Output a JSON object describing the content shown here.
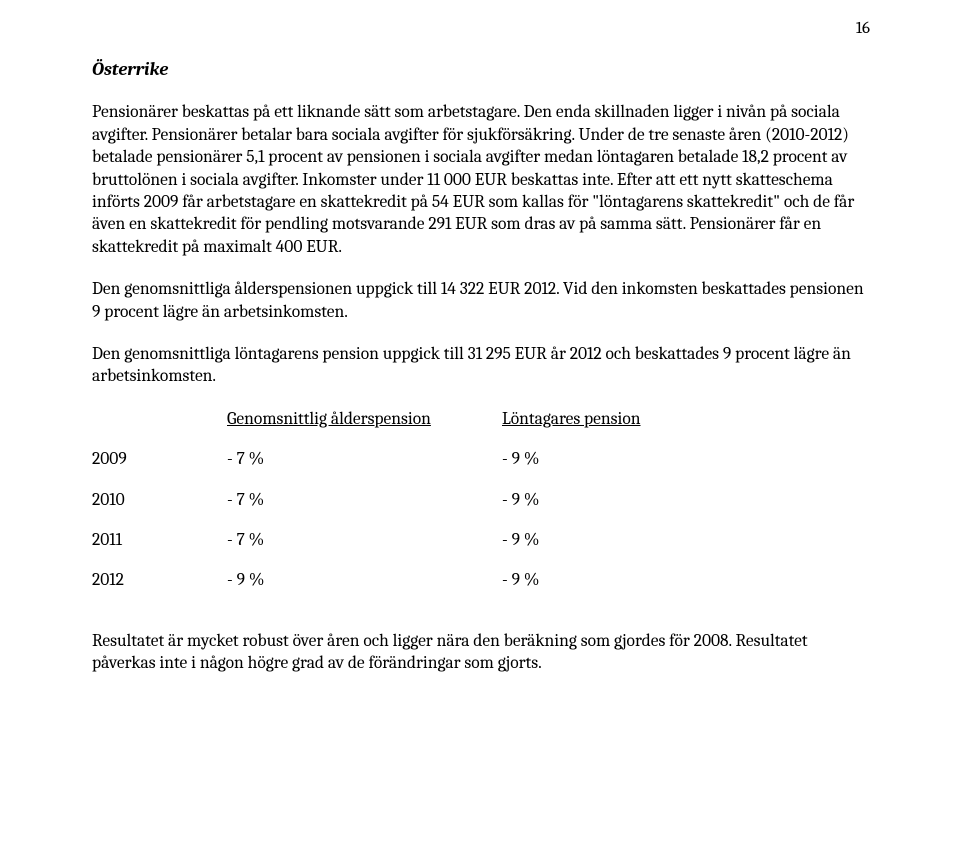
{
  "page_number": "16",
  "section_title": "Österrike",
  "paragraphs": {
    "p1": "Pensionärer beskattas på ett liknande sätt som arbetstagare. Den enda skillnaden ligger i nivån på sociala avgifter. Pensionärer betalar bara sociala avgifter för sjukförsäkring. Under de tre senaste åren (2010-2012) betalade pensionärer 5,1 procent av pensionen i sociala avgifter medan löntagaren betalade 18,2 procent av bruttolönen i sociala avgifter. Inkomster under 11 000 EUR beskattas inte. Efter att ett nytt skatteschema införts 2009 får arbetstagare en skattekredit på 54 EUR som kallas för \"löntagarens skattekredit\" och de får även en skattekredit för pendling motsvarande 291 EUR som dras av på samma sätt. Pensionärer får en skattekredit på maximalt 400 EUR.",
    "p2": "Den genomsnittliga ålderspensionen uppgick till 14 322 EUR 2012. Vid den inkomsten beskattades pensionen 9 procent lägre än arbetsinkomsten.",
    "p3": "Den genomsnittliga löntagarens pension uppgick till 31 295 EUR år 2012 och beskattades 9 procent lägre än arbetsinkomsten.",
    "p4": "Resultatet är mycket robust över åren och ligger nära den beräkning som gjordes för 2008. Resultatet påverkas inte i någon högre grad av de förändringar som gjorts."
  },
  "table": {
    "headers": {
      "col2": "Genomsnittlig ålderspension",
      "col3": "Löntagares pension"
    },
    "rows": [
      {
        "year": "2009",
        "avg": "- 7 %",
        "emp": "- 9 %"
      },
      {
        "year": "2010",
        "avg": "- 7 %",
        "emp": "- 9 %"
      },
      {
        "year": "2011",
        "avg": "- 7 %",
        "emp": "- 9 %"
      },
      {
        "year": "2012",
        "avg": "- 9 %",
        "emp": "- 9 %"
      }
    ]
  }
}
